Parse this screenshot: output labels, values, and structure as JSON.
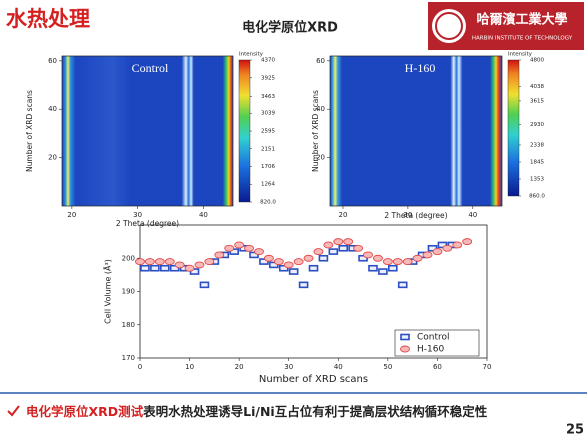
{
  "header": {
    "title": "水热处理",
    "subtitle": "电化学原位XRD",
    "logo": {
      "name": "哈爾濱工業大學",
      "english": "HARBIN INSTITUTE OF TECHNOLOGY"
    }
  },
  "chart_data": [
    {
      "type": "heatmap",
      "label": "Control",
      "xlabel": "2 Theta (degree)",
      "ylabel": "Number of XRD scans",
      "xlim": [
        18.5,
        44.5
      ],
      "ylim": [
        0,
        62
      ],
      "xticks": [
        20,
        30,
        40
      ],
      "yticks": [
        20,
        40,
        60
      ],
      "colorbar": {
        "title": "Intensity",
        "lim": [
          820,
          4370
        ],
        "ticks": [
          4370,
          3925,
          3463,
          3039,
          2595,
          2151,
          1706,
          1264,
          {
            "value": 820,
            "label": "820.0"
          }
        ]
      }
    },
    {
      "type": "heatmap",
      "label": "H-160",
      "xlabel": "2 Theta (degree)",
      "ylabel": "Number of XRD scans",
      "xlim": [
        18,
        44.5
      ],
      "ylim": [
        0,
        62
      ],
      "xticks": [
        20,
        30,
        40
      ],
      "yticks": [
        20,
        40,
        60
      ],
      "colorbar": {
        "title": "Intensity",
        "lim": [
          860,
          4800
        ],
        "ticks": [
          4800,
          4038,
          3615,
          2930,
          2338,
          1845,
          1353,
          {
            "value": 860,
            "label": "860.0"
          }
        ]
      }
    },
    {
      "type": "scatter",
      "xlabel": "Number of XRD scans",
      "ylabel": "Cell Volume (Å³)",
      "xlim": [
        0,
        70
      ],
      "ylim": [
        170,
        210
      ],
      "xticks": [
        0,
        10,
        20,
        30,
        40,
        50,
        60,
        70
      ],
      "yticks": [
        170,
        180,
        190,
        200
      ],
      "legend": "lower right",
      "series": [
        {
          "name": "Control",
          "color": "#2a4fc0",
          "marker": "square",
          "x": [
            1,
            3,
            5,
            7,
            9,
            11,
            13,
            15,
            17,
            19,
            21,
            23,
            25,
            27,
            29,
            31,
            33,
            35,
            37,
            39,
            41,
            43,
            45,
            47,
            49,
            51,
            53,
            55,
            57,
            59,
            61,
            63
          ],
          "values": [
            197,
            197,
            197,
            197,
            197,
            196,
            192,
            199,
            201,
            202,
            203,
            201,
            199,
            198,
            197,
            196,
            192,
            197,
            200,
            202,
            203,
            203,
            200,
            197,
            196,
            197,
            192,
            199,
            201,
            203,
            204,
            204
          ]
        },
        {
          "name": "H-160",
          "color": "#e04848",
          "marker": "circle",
          "x": [
            0,
            2,
            4,
            6,
            8,
            10,
            12,
            14,
            16,
            18,
            20,
            22,
            24,
            26,
            28,
            30,
            32,
            34,
            36,
            38,
            40,
            42,
            44,
            46,
            48,
            50,
            52,
            54,
            56,
            58,
            60,
            62,
            64,
            66
          ],
          "values": [
            199,
            199,
            199,
            199,
            198,
            197,
            198,
            199,
            201,
            203,
            204,
            203,
            202,
            200,
            199,
            198,
            199,
            200,
            202,
            204,
            205,
            205,
            203,
            201,
            200,
            199,
            199,
            199,
            200,
            201,
            202,
            203,
            204,
            205
          ]
        }
      ]
    }
  ],
  "footer": {
    "highlight": "电化学原位XRD测试",
    "text": "表明水热处理诱导Li/Ni互占位有利于提高层状结构循环稳定性",
    "page": "25"
  }
}
